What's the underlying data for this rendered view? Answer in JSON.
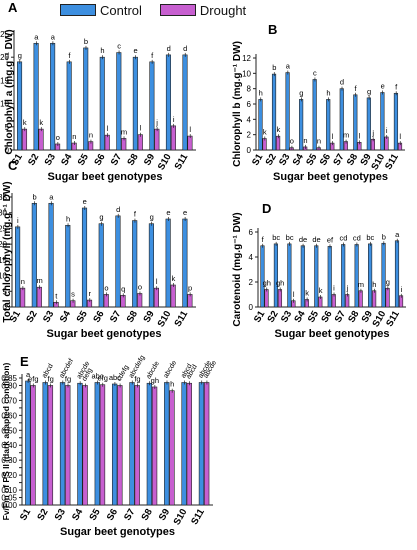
{
  "legend": {
    "control_label": "Control",
    "drought_label": "Drought",
    "control_color": "#3d8fe0",
    "drought_color": "#c75fd0"
  },
  "chart_data": [
    {
      "panel": "A",
      "type": "bar",
      "xlabel": "Sugar beet genotypes",
      "ylabel": "Chlorophyll a (mg.g⁻¹ DW)",
      "ylim": [
        0,
        25
      ],
      "yticks": [
        0,
        5,
        10,
        15,
        20,
        25
      ],
      "categories": [
        "S1",
        "S2",
        "S3",
        "S4",
        "S5",
        "S6",
        "S7",
        "S8",
        "S9",
        "S10",
        "S11"
      ],
      "series": [
        {
          "name": "Control",
          "values": [
            19,
            23,
            23,
            19,
            22,
            20,
            21,
            20,
            19,
            20.5,
            20.5
          ],
          "letters": [
            "g",
            "a",
            "a",
            "f",
            "b",
            "h",
            "c",
            "e",
            "f",
            "d",
            "d"
          ]
        },
        {
          "name": "Drought",
          "values": [
            4.5,
            4.5,
            1.3,
            1.5,
            1.8,
            3.2,
            2.5,
            3.3,
            4.5,
            5.2,
            3.0
          ],
          "letters": [
            "k",
            "k",
            "o",
            "n",
            "n",
            "l",
            "m",
            "l",
            "j",
            "i",
            "l"
          ]
        }
      ]
    },
    {
      "panel": "B",
      "type": "bar",
      "xlabel": "Sugar beet genotypes",
      "ylabel": "Chlorophyll b (mg.g⁻¹ DW)",
      "ylim": [
        0,
        12
      ],
      "yticks": [
        0,
        2,
        4,
        6,
        8,
        10,
        12
      ],
      "categories": [
        "S1",
        "S2",
        "S3",
        "S4",
        "S5",
        "S6",
        "S7",
        "S8",
        "S9",
        "S10",
        "S11"
      ],
      "series": [
        {
          "name": "Control",
          "values": [
            6.6,
            9.9,
            10.1,
            6.6,
            9.2,
            6.6,
            8.0,
            7.2,
            6.8,
            7.5,
            7.4
          ],
          "letters": [
            "h",
            "b",
            "a",
            "g",
            "c",
            "h",
            "d",
            "f",
            "g",
            "e",
            "f"
          ]
        },
        {
          "name": "Drought",
          "values": [
            1.5,
            1.8,
            0.3,
            0.4,
            0.3,
            0.9,
            1.1,
            1.0,
            1.4,
            1.7,
            0.9
          ],
          "letters": [
            "k",
            "k",
            "o",
            "n",
            "n",
            "l",
            "m",
            "l",
            "j",
            "i",
            "l"
          ]
        }
      ]
    },
    {
      "panel": "C",
      "type": "bar",
      "xlabel": "Sugar beet genotypes",
      "ylabel": "Total chlorophyll (mg.g⁻¹ DW)",
      "ylim": [
        0,
        35
      ],
      "yticks": [
        0,
        5,
        10,
        15,
        20,
        25,
        30,
        35
      ],
      "categories": [
        "S1",
        "S2",
        "S3",
        "S4",
        "S5",
        "S6",
        "S7",
        "S8",
        "S9",
        "S10",
        "S11"
      ],
      "series": [
        {
          "name": "Control",
          "values": [
            25.5,
            33,
            33,
            26,
            31.5,
            26.5,
            29,
            27.5,
            26.5,
            28,
            28
          ],
          "letters": [
            "i",
            "b",
            "a",
            "h",
            "e",
            "g",
            "d",
            "f",
            "g",
            "e",
            "e"
          ]
        },
        {
          "name": "Drought",
          "values": [
            6,
            6.3,
            1.5,
            2.0,
            2.2,
            4.0,
            3.7,
            4.3,
            6.0,
            7.0,
            4.0
          ],
          "letters": [
            "n",
            "m",
            "t",
            "s",
            "r",
            "o",
            "q",
            "o",
            "l",
            "k",
            "p"
          ]
        }
      ]
    },
    {
      "panel": "D",
      "type": "bar",
      "xlabel": "Sugar beet genotypes",
      "ylabel": "Carotenoid (mg.g⁻¹ DW)",
      "ylim": [
        0,
        6
      ],
      "yticks": [
        0,
        2,
        4,
        6
      ],
      "categories": [
        "S1",
        "S2",
        "S3",
        "S4",
        "S5",
        "S6",
        "S7",
        "S8",
        "S9",
        "S10",
        "S11"
      ],
      "series": [
        {
          "name": "Control",
          "values": [
            4.9,
            5.05,
            5.05,
            4.9,
            4.9,
            4.85,
            5.0,
            5.0,
            5.05,
            5.1,
            5.3
          ],
          "letters": [
            "f",
            "bc",
            "bc",
            "de",
            "de",
            "ef",
            "cd",
            "cd",
            "bc",
            "b",
            "a"
          ]
        },
        {
          "name": "Drought",
          "values": [
            1.4,
            1.4,
            0.5,
            0.6,
            0.8,
            1.0,
            1.0,
            1.3,
            1.3,
            1.5,
            0.9
          ],
          "letters": [
            "gh",
            "gh",
            "l",
            "k",
            "k",
            "i",
            "j",
            "m",
            "h",
            "g",
            "i"
          ]
        }
      ]
    },
    {
      "panel": "E",
      "type": "bar",
      "xlabel": "Sugar beet genotypes",
      "ylabel": "Fv/Fm of PS II (dark adapted condition)",
      "ylim": [
        0.0,
        0.85
      ],
      "yticks": [
        0.0,
        0.05,
        0.1,
        0.15,
        0.2,
        0.25,
        0.3,
        0.35,
        0.4,
        0.45,
        0.5,
        0.55,
        0.6,
        0.65,
        0.7,
        0.75,
        0.8,
        0.85
      ],
      "categories": [
        "S1",
        "S2",
        "S3",
        "S4",
        "S5",
        "S6",
        "S7",
        "S8",
        "S9",
        "S10",
        "S11"
      ],
      "series": [
        {
          "name": "Control",
          "values": [
            0.83,
            0.82,
            0.82,
            0.815,
            0.82,
            0.81,
            0.82,
            0.815,
            0.82,
            0.82,
            0.82
          ],
          "letters": [
            "a",
            "abcd",
            "abcdef",
            "abcde",
            "abc",
            "abc",
            "abcdefg",
            "abcde",
            "abcde",
            "abcd",
            "abcde"
          ]
        },
        {
          "name": "Drought",
          "values": [
            0.8,
            0.8,
            0.8,
            0.8,
            0.805,
            0.8,
            0.8,
            0.79,
            0.765,
            0.815,
            0.82
          ],
          "letters": [
            "efg",
            "fg",
            "fg",
            "defg",
            "efg",
            "cdefg",
            "fg",
            "gh",
            "h",
            "abcd",
            "abcde"
          ]
        }
      ]
    }
  ]
}
